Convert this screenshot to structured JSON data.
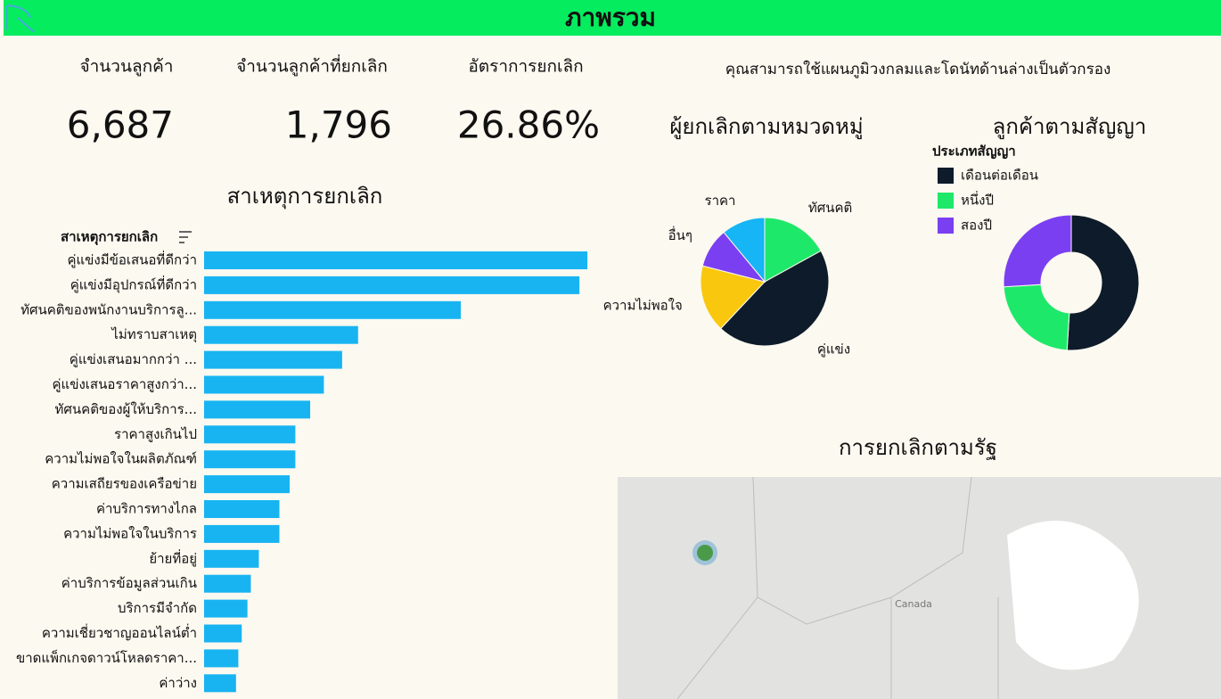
{
  "header": {
    "title": "ภาพรวม"
  },
  "kpis": [
    {
      "label": "จำนวนลูกค้า",
      "value": "6,687"
    },
    {
      "label": "จำนวนลูกค้าที่ยกเลิก",
      "value": "1,796"
    },
    {
      "label": "อัตราการยกเลิก",
      "value": "26.86%"
    }
  ],
  "filter_note": "คุณสามารถใช้แผนภูมิวงกลมและโดนัทด้านล่างเป็นตัวกรอง",
  "chart_data": [
    {
      "type": "hbar",
      "title": "สาเหตุการยกเลิก",
      "y_label": "สาเหตุการยกเลิก",
      "color": "#18b4f2",
      "categories": [
        "คู่แข่งมีข้อเสนอที่ดีกว่า",
        "คู่แข่งมีอุปกรณ์ที่ดีกว่า",
        "ทัศนคติของพนักงานบริการลู...",
        "ไม่ทราบสาเหตุ",
        "คู่แข่งเสนอมากกว่า ...",
        "คู่แข่งเสนอราคาสูงกว่า...",
        "ทัศนคติของผู้ให้บริการ...",
        "ราคาสูงเกินไป",
        "ความไม่พอใจในผลิตภัณฑ์",
        "ความเสถียรของเครือข่าย",
        "ค่าบริการทางไกล",
        "ความไม่พอใจในบริการ",
        "ย้ายที่อยู่",
        "ค่าบริการข้อมูลส่วนเกิน",
        "บริการมีจำกัด",
        "ความเชี่ยวชาญออนไลน์ต่ำ",
        "ขาดแพ็กเกจดาวน์โหลดราคา...",
        "ค่าว่าง"
      ],
      "values": [
        336,
        329,
        225,
        135,
        121,
        105,
        93,
        80,
        80,
        75,
        66,
        66,
        48,
        41,
        38,
        33,
        30,
        28
      ],
      "xlim": [
        0,
        350
      ]
    },
    {
      "type": "pie",
      "title": "ผู้ยกเลิกตามหมวดหมู่",
      "categories": [
        "ทัศนคติ",
        "คู่แข่ง",
        "ความไม่พอใจ",
        "อื่นๆ",
        "ราคา"
      ],
      "values": [
        17,
        45,
        17,
        10,
        11
      ],
      "colors": [
        "#1ee86a",
        "#0d1b2a",
        "#f9c80e",
        "#7b3ff2",
        "#16b5f5"
      ]
    },
    {
      "type": "donut",
      "title": "ลูกค้าตามสัญญา",
      "legend_title": "ประเภทสัญญา",
      "categories": [
        "เดือนต่อเดือน",
        "หนึ่งปี",
        "สองปี"
      ],
      "values": [
        51,
        23,
        26
      ],
      "colors": [
        "#0d1b2a",
        "#1ee86a",
        "#7b3ff2"
      ]
    }
  ],
  "map": {
    "title": "การยกเลิกตามรัฐ",
    "label": "Canada"
  }
}
